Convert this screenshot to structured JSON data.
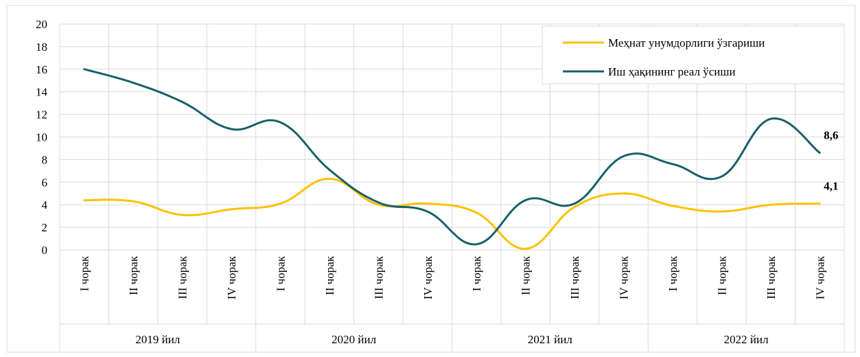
{
  "colors": {
    "productivity": "#FFC000",
    "wage": "#17606A",
    "grid": "#d9d9d9",
    "frame": "#d9d9d9"
  },
  "chart_data": {
    "type": "line",
    "ylim": [
      0,
      20
    ],
    "yticks": [
      0,
      2,
      4,
      6,
      8,
      10,
      12,
      14,
      16,
      18,
      20
    ],
    "grid": true,
    "legend_position": "top-right",
    "categories": [
      "I чорак",
      "II чорак",
      "III чорак",
      "IV чорак",
      "I чорак",
      "II чорак",
      "III чорак",
      "IV чорак",
      "I чорак",
      "II чорак",
      "III чорак",
      "IV чорак",
      "I чорак",
      "II чорак",
      "III чорак",
      "IV чорак"
    ],
    "groups": [
      "2019 йил",
      "2020 йил",
      "2021 йил",
      "2022 йил"
    ],
    "series": [
      {
        "name": "Меҳнат унумдорлиги ўзгариши",
        "color": "#FFC000",
        "values": [
          4.4,
          4.3,
          3.1,
          3.6,
          4.1,
          6.3,
          4.0,
          4.1,
          3.3,
          0.1,
          3.8,
          5.0,
          3.9,
          3.4,
          4.0,
          4.1
        ],
        "end_label": "4,1"
      },
      {
        "name": "Иш ҳақининг реал ўсиши",
        "color": "#17606A",
        "values": [
          16.0,
          14.8,
          13.1,
          10.7,
          11.3,
          7.1,
          4.2,
          3.4,
          0.5,
          4.4,
          4.1,
          8.3,
          7.6,
          6.5,
          11.6,
          8.6
        ],
        "end_label": "8,6"
      }
    ]
  }
}
